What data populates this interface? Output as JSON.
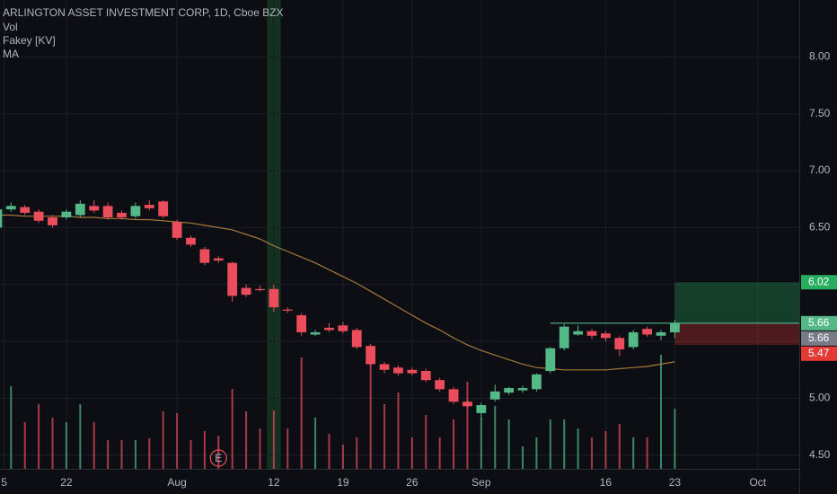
{
  "chart_data": {
    "type": "candlestick",
    "title": "ARLINGTON ASSET INVESTMENT CORP, 1D, Cboe BZX",
    "legend": [
      "Vol",
      "Fakey [KV]",
      "MA"
    ],
    "open": [
      6.5,
      6.66,
      6.68,
      6.64,
      6.59,
      6.59,
      6.61,
      6.69,
      6.69,
      6.63,
      6.6,
      6.7,
      6.73,
      6.55,
      6.41,
      6.31,
      6.23,
      6.19,
      5.97,
      5.96,
      5.96,
      5.78,
      5.73,
      5.56,
      5.62,
      5.64,
      5.6,
      5.46,
      5.3,
      5.27,
      5.25,
      5.24,
      5.16,
      5.08,
      4.97,
      4.87,
      4.99,
      5.05,
      5.07,
      5.08,
      5.24,
      5.44,
      5.56,
      5.59,
      5.57,
      5.53,
      5.45,
      5.61,
      5.55,
      5.58
    ],
    "high": [
      6.7,
      6.72,
      6.7,
      6.66,
      6.61,
      6.66,
      6.74,
      6.74,
      6.72,
      6.65,
      6.72,
      6.74,
      6.74,
      6.57,
      6.43,
      6.33,
      6.25,
      6.2,
      6.0,
      5.99,
      6.0,
      5.8,
      5.75,
      5.6,
      5.66,
      5.67,
      5.62,
      5.48,
      5.32,
      5.29,
      5.27,
      5.26,
      5.18,
      5.1,
      4.99,
      4.96,
      5.12,
      5.1,
      5.11,
      5.22,
      5.45,
      5.65,
      5.64,
      5.61,
      5.59,
      5.55,
      5.6,
      5.63,
      5.6,
      5.69
    ],
    "low": [
      6.47,
      6.64,
      6.61,
      6.54,
      6.5,
      6.57,
      6.59,
      6.63,
      6.57,
      6.57,
      6.58,
      6.65,
      6.58,
      6.39,
      6.33,
      6.17,
      6.19,
      5.85,
      5.89,
      5.94,
      5.76,
      5.75,
      5.55,
      5.55,
      5.58,
      5.57,
      5.43,
      5.28,
      5.22,
      5.2,
      5.2,
      5.14,
      5.06,
      4.95,
      4.91,
      4.82,
      4.97,
      5.03,
      5.05,
      5.06,
      5.22,
      5.42,
      5.55,
      5.52,
      5.5,
      5.37,
      5.43,
      5.54,
      5.51,
      5.53
    ],
    "close": [
      6.66,
      6.69,
      6.63,
      6.56,
      6.52,
      6.64,
      6.71,
      6.65,
      6.59,
      6.59,
      6.69,
      6.67,
      6.6,
      6.41,
      6.35,
      6.19,
      6.21,
      5.9,
      5.91,
      5.95,
      5.8,
      5.77,
      5.58,
      5.58,
      5.6,
      5.59,
      5.45,
      5.3,
      5.25,
      5.22,
      5.22,
      5.16,
      5.08,
      4.97,
      4.93,
      4.94,
      5.06,
      5.09,
      5.09,
      5.21,
      5.44,
      5.63,
      5.59,
      5.55,
      5.53,
      5.43,
      5.58,
      5.56,
      5.58,
      5.66
    ],
    "volume": [
      37,
      92,
      52,
      72,
      57,
      52,
      72,
      52,
      32,
      32,
      32,
      34,
      64,
      62,
      32,
      42,
      37,
      89,
      64,
      45,
      65,
      45,
      124,
      57,
      39,
      27,
      35,
      117,
      72,
      85,
      35,
      60,
      35,
      55,
      97,
      57,
      70,
      55,
      25,
      35,
      55,
      55,
      45,
      35,
      42,
      50,
      35,
      35,
      127,
      67
    ],
    "volume_lim": [
      0,
      522
    ],
    "ma": [
      6.61,
      6.61,
      6.6,
      6.6,
      6.6,
      6.6,
      6.59,
      6.59,
      6.58,
      6.58,
      6.57,
      6.57,
      6.56,
      6.55,
      6.54,
      6.52,
      6.5,
      6.48,
      6.44,
      6.4,
      6.34,
      6.29,
      6.24,
      6.19,
      6.13,
      6.07,
      6.01,
      5.94,
      5.87,
      5.8,
      5.73,
      5.66,
      5.6,
      5.53,
      5.47,
      5.42,
      5.38,
      5.34,
      5.3,
      5.27,
      5.26,
      5.25,
      5.25,
      5.25,
      5.25,
      5.26,
      5.27,
      5.28,
      5.3,
      5.32
    ],
    "xlim": [
      0.2,
      58
    ],
    "xticks": [
      {
        "value": 0.5,
        "label": "5"
      },
      {
        "value": 5,
        "label": "22"
      },
      {
        "value": 13,
        "label": "Aug"
      },
      {
        "value": 20,
        "label": "12"
      },
      {
        "value": 25,
        "label": "19"
      },
      {
        "value": 30,
        "label": "26"
      },
      {
        "value": 35,
        "label": "Sep"
      },
      {
        "value": 44,
        "label": "16"
      },
      {
        "value": 49,
        "label": "23"
      },
      {
        "value": 55,
        "label": "Oct"
      }
    ],
    "ylim": [
      4.38,
      8.5
    ],
    "yticks": [
      {
        "value": 4.5,
        "label": "4.50"
      },
      {
        "value": 5,
        "label": "5.00"
      },
      {
        "value": 5.5,
        "label": "5.50"
      },
      {
        "value": 6,
        "label": "6.00"
      },
      {
        "value": 6.5,
        "label": "6.50"
      },
      {
        "value": 7,
        "label": "7.00"
      },
      {
        "value": 7.5,
        "label": "7.50"
      },
      {
        "value": 8,
        "label": "8.00"
      }
    ],
    "grid": true,
    "position": {
      "entry": 5.66,
      "target": 6.02,
      "stop": 5.47,
      "start": 49,
      "entry_line_start": 40
    },
    "highlight_x": 20,
    "earnings": {
      "x": 16,
      "label": "E"
    },
    "colors": {
      "up": "#53b987",
      "down": "#eb4d5c",
      "ma": "#a5783a",
      "target": "#27ae60",
      "stop": "#e53935",
      "last": "#787b86",
      "background": "#0c0e14",
      "grid": "#1a1e29",
      "text": "#b2b5be",
      "highlight": "#1e5c2a"
    }
  }
}
